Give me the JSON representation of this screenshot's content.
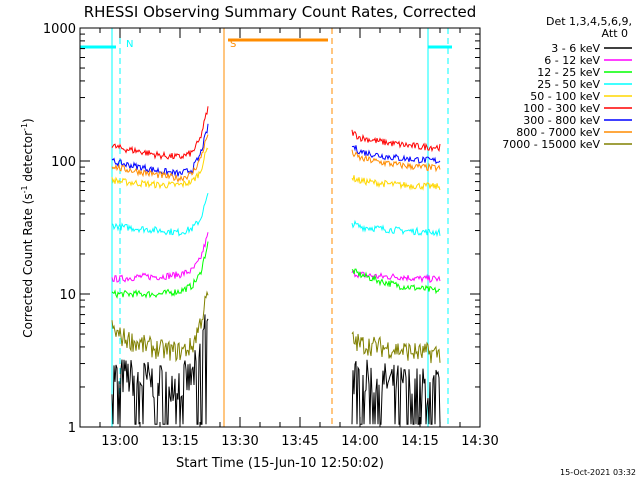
{
  "chart_data": {
    "type": "line",
    "title": "RHESSI Observing Summary Count Rates, Corrected",
    "xlabel": "Start Time (15-Jun-10 12:50:02)",
    "ylabel": "Corrected Count Rate (s-1 detector-1)",
    "ylabel_parts": [
      "Corrected Count Rate (s",
      "-1",
      " detector",
      "-1",
      ")"
    ],
    "y_scale": "log",
    "ylim": [
      1,
      1000
    ],
    "y_ticks": [
      "1",
      "10",
      "100",
      "1000"
    ],
    "xlim": [
      "12:50",
      "14:30"
    ],
    "x_ticks": [
      "13:00",
      "13:15",
      "13:30",
      "13:45",
      "14:00",
      "14:15",
      "14:30"
    ],
    "grid": false,
    "legend_title": [
      "Det 1,3,4,5,6,9,",
      "Att 0"
    ],
    "legend_position": "right",
    "series": [
      {
        "name": "3 - 6 keV",
        "color": "#000000",
        "segment1": {
          "x": [
            "12:58",
            "13:00",
            "13:05",
            "13:10",
            "13:15",
            "13:18",
            "13:20",
            "13:22"
          ],
          "y": [
            2.5,
            2.4,
            2.3,
            2.2,
            2.2,
            2.3,
            3.5,
            8
          ]
        },
        "segment2": {
          "x": [
            "13:58",
            "14:00",
            "14:05",
            "14:10",
            "14:15",
            "14:20"
          ],
          "y": [
            2.4,
            2.3,
            2.2,
            2.1,
            2.0,
            2.0
          ]
        }
      },
      {
        "name": "6 - 12 keV",
        "color": "#ff00ff",
        "segment1": {
          "x": [
            "12:58",
            "13:00",
            "13:05",
            "13:10",
            "13:15",
            "13:18",
            "13:20",
            "13:22"
          ],
          "y": [
            13,
            13,
            13.5,
            13.5,
            14,
            15,
            18,
            28
          ]
        },
        "segment2": {
          "x": [
            "13:58",
            "14:00",
            "14:05",
            "14:10",
            "14:15",
            "14:20"
          ],
          "y": [
            14.5,
            14,
            13.5,
            13.5,
            13,
            13
          ]
        }
      },
      {
        "name": "12 - 25 keV",
        "color": "#00ff00",
        "segment1": {
          "x": [
            "12:58",
            "13:00",
            "13:05",
            "13:10",
            "13:15",
            "13:18",
            "13:20",
            "13:22"
          ],
          "y": [
            10,
            10,
            10,
            10,
            10.5,
            11.5,
            14,
            24
          ]
        },
        "segment2": {
          "x": [
            "13:58",
            "14:00",
            "14:05",
            "14:10",
            "14:15",
            "14:20"
          ],
          "y": [
            15,
            14,
            12.5,
            11.5,
            11,
            10.5
          ]
        }
      },
      {
        "name": "25 - 50 keV",
        "color": "#00ffff",
        "segment1": {
          "x": [
            "12:58",
            "13:00",
            "13:05",
            "13:10",
            "13:15",
            "13:18",
            "13:20",
            "13:22"
          ],
          "y": [
            33,
            32,
            31,
            30,
            29,
            31,
            36,
            55
          ]
        },
        "segment2": {
          "x": [
            "13:58",
            "14:00",
            "14:05",
            "14:10",
            "14:15",
            "14:20"
          ],
          "y": [
            34,
            32,
            31,
            30,
            29.5,
            29
          ]
        }
      },
      {
        "name": "50 - 100 keV",
        "color": "#ffd700",
        "segment1": {
          "x": [
            "12:58",
            "13:00",
            "13:05",
            "13:10",
            "13:15",
            "13:18",
            "13:20",
            "13:22"
          ],
          "y": [
            72,
            70,
            68,
            66,
            66,
            70,
            82,
            130
          ]
        },
        "segment2": {
          "x": [
            "13:58",
            "14:00",
            "14:05",
            "14:10",
            "14:15",
            "14:20"
          ],
          "y": [
            75,
            71,
            68,
            66,
            65,
            64
          ]
        }
      },
      {
        "name": "100 - 300 keV",
        "color": "#ff0000",
        "segment1": {
          "x": [
            "12:58",
            "13:00",
            "13:05",
            "13:10",
            "13:15",
            "13:18",
            "13:20",
            "13:22"
          ],
          "y": [
            130,
            125,
            118,
            110,
            107,
            115,
            145,
            250
          ]
        },
        "segment2": {
          "x": [
            "13:58",
            "14:00",
            "14:05",
            "14:10",
            "14:15",
            "14:20"
          ],
          "y": [
            165,
            150,
            140,
            133,
            128,
            127
          ]
        }
      },
      {
        "name": "300 - 800 keV",
        "color": "#0000ff",
        "segment1": {
          "x": [
            "12:58",
            "13:00",
            "13:05",
            "13:10",
            "13:15",
            "13:18",
            "13:20",
            "13:22"
          ],
          "y": [
            100,
            96,
            90,
            84,
            80,
            86,
            110,
            180
          ]
        },
        "segment2": {
          "x": [
            "13:58",
            "14:00",
            "14:05",
            "14:10",
            "14:15",
            "14:20"
          ],
          "y": [
            130,
            118,
            110,
            105,
            102,
            100
          ]
        }
      },
      {
        "name": "800 - 7000 keV",
        "color": "#ff8c00",
        "segment1": {
          "x": [
            "12:58",
            "13:00",
            "13:05",
            "13:10",
            "13:15",
            "13:18",
            "13:20",
            "13:22"
          ],
          "y": [
            93,
            88,
            83,
            78,
            74,
            80,
            102,
            160
          ]
        },
        "segment2": {
          "x": [
            "13:58",
            "14:00",
            "14:05",
            "14:10",
            "14:15",
            "14:20"
          ],
          "y": [
            115,
            105,
            98,
            93,
            90,
            88
          ]
        }
      },
      {
        "name": "7000 - 15000 keV",
        "color": "#808000",
        "segment1": {
          "x": [
            "12:58",
            "13:00",
            "13:05",
            "13:10",
            "13:15",
            "13:18",
            "13:20",
            "13:22"
          ],
          "y": [
            5.5,
            4.8,
            4.2,
            3.8,
            3.7,
            4,
            6,
            10
          ]
        },
        "segment2": {
          "x": [
            "13:58",
            "14:00",
            "14:05",
            "14:10",
            "14:15",
            "14:20"
          ],
          "y": [
            4.5,
            4.2,
            4.0,
            3.8,
            3.6,
            3.6
          ]
        }
      }
    ],
    "annotations": [
      {
        "label": "N",
        "color": "#00ffff",
        "x": "13:00"
      },
      {
        "label": "S",
        "color": "#ff8c00",
        "x": "13:26"
      }
    ],
    "markers": {
      "cyan_dashed": [
        "13:00",
        "14:22"
      ],
      "cyan_solid": [
        "12:58",
        "14:17"
      ],
      "orange_solid": [
        "13:26"
      ],
      "orange_dashed": [
        "13:53"
      ],
      "cyan_bar_segments": [
        [
          "12:50",
          "12:59"
        ],
        [
          "14:17",
          "14:23"
        ]
      ],
      "orange_bar_segments": [
        [
          "13:27",
          "13:52"
        ]
      ]
    },
    "footer_date": "15-Oct-2021 03:32"
  }
}
